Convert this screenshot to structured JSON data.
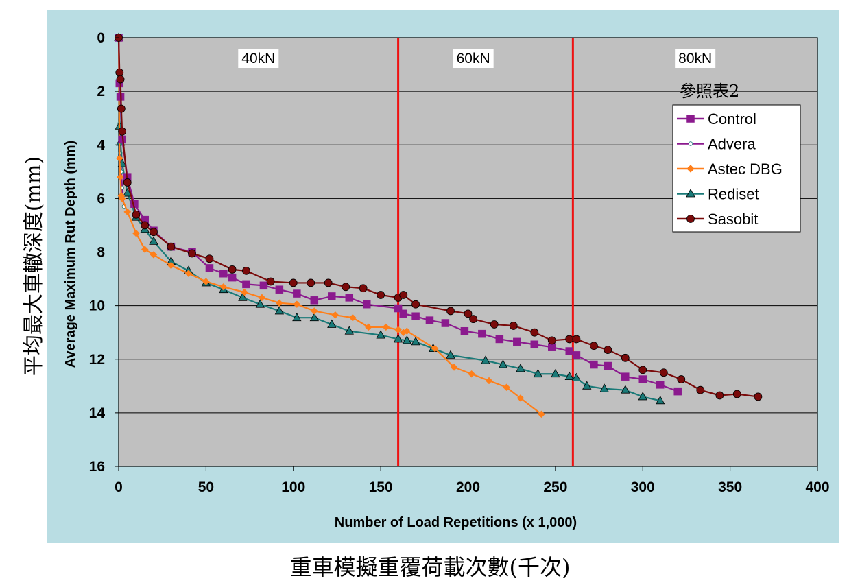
{
  "chart_data": {
    "type": "line",
    "xlabel": "Number of Load Repetitions (x 1,000)",
    "ylabel": "Average Maximum Rut Depth (mm)",
    "xlabel_secondary": "重車模擬重覆荷載次數(千次)",
    "ylabel_secondary": "平均最大車轍深度(mm)",
    "xlim": [
      0,
      400
    ],
    "ylim": [
      0,
      16
    ],
    "y_inverted": true,
    "xticks": [
      "0",
      "50",
      "100",
      "150",
      "200",
      "250",
      "300",
      "350",
      "400"
    ],
    "yticks": [
      "0",
      "2",
      "4",
      "6",
      "8",
      "10",
      "12",
      "14",
      "16"
    ],
    "grid": "horizontal",
    "legend_title": "參照表2",
    "legend_position": "top-right",
    "load_stages": [
      {
        "label": "40kN",
        "x_label": 80
      },
      {
        "label": "60kN",
        "x_label": 203
      },
      {
        "label": "80kN",
        "x_label": 330
      }
    ],
    "stage_boundaries": [
      160,
      260
    ],
    "boundary_color": "#ee1111",
    "plot_background": "#c0c0c0",
    "series": [
      {
        "name": "Control",
        "color": "#8b1a8e",
        "marker": "square",
        "x": [
          0,
          0.5,
          1,
          2,
          5,
          9,
          15,
          20,
          30,
          42,
          52,
          60,
          65,
          73,
          83,
          92,
          102,
          112,
          122,
          132,
          142,
          160,
          163,
          170,
          178,
          187,
          198,
          208,
          218,
          228,
          238,
          248,
          258,
          262,
          272,
          280,
          290,
          300,
          310,
          320
        ],
        "y": [
          0,
          1.7,
          2.2,
          3.8,
          5.2,
          6.2,
          6.8,
          7.2,
          7.8,
          8.0,
          8.6,
          8.8,
          8.95,
          9.2,
          9.25,
          9.4,
          9.55,
          9.8,
          9.65,
          9.7,
          9.95,
          10.1,
          10.3,
          10.4,
          10.55,
          10.65,
          10.95,
          11.05,
          11.25,
          11.35,
          11.45,
          11.55,
          11.7,
          11.85,
          12.2,
          12.25,
          12.65,
          12.75,
          12.95,
          13.2
        ]
      },
      {
        "name": "Advera",
        "color": "#8b1a8e",
        "marker": "circle",
        "x": [
          0,
          0.5,
          1,
          1.5,
          2,
          2.5,
          3
        ],
        "y": [
          0,
          3.2,
          4.3,
          5.0,
          5.6,
          6.0,
          6.3
        ]
      },
      {
        "name": "Astec DBG",
        "color": "#ff7f1a",
        "marker": "diamond",
        "x": [
          0,
          0.5,
          1,
          1.5,
          2,
          5,
          10,
          15,
          20,
          30,
          40,
          50,
          60,
          72,
          82,
          92,
          102,
          112,
          124,
          134,
          143,
          153,
          160,
          163,
          165,
          181,
          192,
          202,
          212,
          222,
          230,
          242
        ],
        "y": [
          0,
          4.5,
          5.2,
          5.9,
          6.0,
          6.5,
          7.3,
          7.9,
          8.1,
          8.5,
          8.8,
          9.1,
          9.3,
          9.5,
          9.7,
          9.9,
          9.95,
          10.2,
          10.35,
          10.45,
          10.8,
          10.8,
          10.9,
          11.0,
          10.95,
          11.6,
          12.3,
          12.55,
          12.8,
          13.05,
          13.45,
          14.05
        ]
      },
      {
        "name": "Rediset",
        "color": "#1a7a78",
        "marker": "triangle",
        "x": [
          0,
          0.5,
          1,
          2,
          5,
          10,
          15,
          20,
          30,
          40,
          50,
          60,
          71,
          81,
          92,
          102,
          112,
          122,
          132,
          150,
          160,
          165,
          170,
          180,
          190,
          210,
          220,
          230,
          240,
          250,
          258,
          262,
          268,
          278,
          290,
          300,
          310
        ],
        "y": [
          0,
          3.3,
          3.9,
          4.7,
          5.8,
          6.7,
          7.15,
          7.6,
          8.35,
          8.7,
          9.15,
          9.4,
          9.7,
          9.95,
          10.2,
          10.45,
          10.45,
          10.7,
          10.95,
          11.1,
          11.25,
          11.3,
          11.35,
          11.6,
          11.85,
          12.05,
          12.2,
          12.35,
          12.55,
          12.55,
          12.65,
          12.7,
          13.0,
          13.1,
          13.15,
          13.4,
          13.55
        ]
      },
      {
        "name": "Sasobit",
        "color": "#7a0a0a",
        "marker": "circle",
        "x": [
          0,
          0.5,
          1,
          1.5,
          2,
          5,
          10,
          15,
          20,
          30,
          42,
          52,
          65,
          73,
          87,
          100,
          110,
          120,
          130,
          140,
          150,
          160,
          163,
          170,
          190,
          200,
          203,
          215,
          226,
          238,
          248,
          258,
          262,
          272,
          280,
          290,
          300,
          312,
          322,
          333,
          344,
          354,
          366
        ],
        "y": [
          0,
          1.3,
          1.55,
          2.65,
          3.5,
          5.4,
          6.6,
          7.0,
          7.25,
          7.8,
          8.05,
          8.25,
          8.65,
          8.7,
          9.1,
          9.15,
          9.15,
          9.15,
          9.3,
          9.35,
          9.6,
          9.7,
          9.6,
          9.95,
          10.2,
          10.3,
          10.5,
          10.7,
          10.75,
          11.0,
          11.3,
          11.25,
          11.25,
          11.5,
          11.65,
          11.95,
          12.4,
          12.5,
          12.75,
          13.15,
          13.35,
          13.3,
          13.4
        ]
      }
    ]
  }
}
